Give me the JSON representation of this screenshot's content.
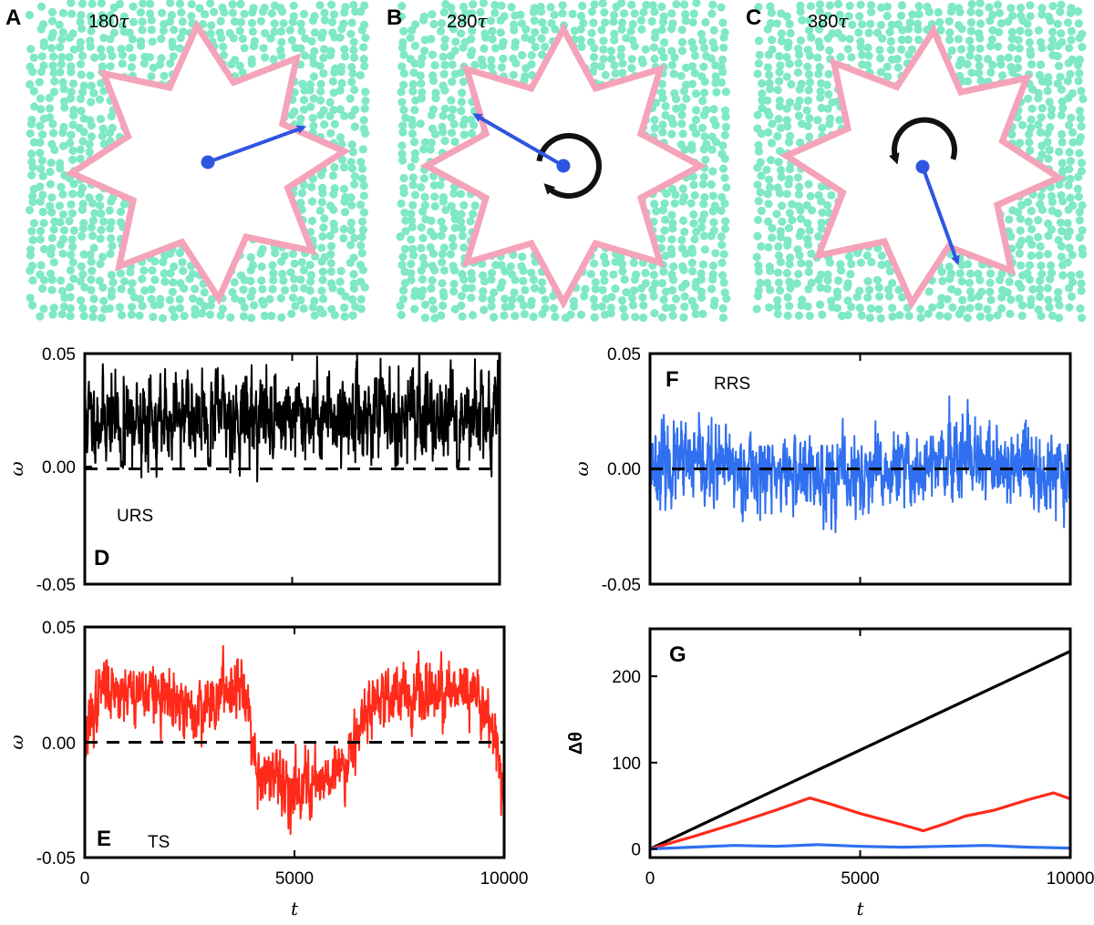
{
  "snapshots": [
    {
      "letter": "A",
      "time": "180",
      "time_unit": "τ",
      "arrow_angle_deg": -20,
      "rotation": "none"
    },
    {
      "letter": "B",
      "time": "280",
      "time_unit": "τ",
      "arrow_angle_deg": -150,
      "rotation": "counterclockwise"
    },
    {
      "letter": "C",
      "time": "380",
      "time_unit": "τ",
      "arrow_angle_deg": 70,
      "rotation": "clockwise"
    }
  ],
  "colors": {
    "particle": "#7fe8c6",
    "star_outline": "#f4a3b8",
    "arrow": "#2f55e0",
    "rotation_arc": "#111111",
    "URS": "#000000",
    "RRS": "#2f6ff0",
    "TS": "#ff2a1a"
  },
  "chart_data": [
    {
      "panel": "D",
      "type": "line",
      "label": "URS",
      "xlabel": "",
      "ylabel": "ω",
      "xlim": [
        0,
        10000
      ],
      "ylim": [
        -0.05,
        0.05
      ],
      "yticks": [
        "0.05",
        "0.00",
        "-0.05"
      ],
      "xticks": [],
      "reference_line": 0,
      "series": [
        {
          "color": "#000000",
          "mean": 0.024,
          "sd": 0.0085,
          "seed": 11,
          "knots": [
            [
              0,
              0.022
            ],
            [
              10000,
              0.024
            ]
          ],
          "dips": [
            [
              900,
              0.0
            ],
            [
              3000,
              0.001
            ],
            [
              9000,
              0.0
            ]
          ]
        }
      ]
    },
    {
      "panel": "F",
      "type": "line",
      "label": "RRS",
      "xlabel": "",
      "ylabel": "ω",
      "xlim": [
        0,
        10000
      ],
      "ylim": [
        -0.05,
        0.05
      ],
      "yticks": [
        "0.05",
        "0.00",
        "-0.05"
      ],
      "xticks": [],
      "reference_line": 0,
      "series": [
        {
          "color": "#2f6ff0",
          "mean": 0.0,
          "sd": 0.0078,
          "seed": 23,
          "knots": [
            [
              0,
              0.002
            ],
            [
              2000,
              0.0
            ],
            [
              5000,
              -0.004
            ],
            [
              7000,
              0.002
            ],
            [
              10000,
              0.0
            ]
          ],
          "dips": []
        }
      ]
    },
    {
      "panel": "E",
      "type": "line",
      "label": "TS",
      "xlabel": "t",
      "ylabel": "ω",
      "xlim": [
        0,
        10000
      ],
      "ylim": [
        -0.05,
        0.05
      ],
      "yticks": [
        "0.05",
        "0.00",
        "-0.05"
      ],
      "xticks": [
        "0",
        "5000",
        "10000"
      ],
      "reference_line": 0,
      "series": [
        {
          "color": "#ff2a1a",
          "mean": 0.0,
          "sd": 0.006,
          "seed": 37,
          "knots": [
            [
              0,
              0.001
            ],
            [
              400,
              0.024
            ],
            [
              1500,
              0.022
            ],
            [
              2600,
              0.012
            ],
            [
              3300,
              0.022
            ],
            [
              3800,
              0.028
            ],
            [
              4100,
              -0.012
            ],
            [
              4800,
              -0.02
            ],
            [
              5600,
              -0.016
            ],
            [
              6200,
              -0.01
            ],
            [
              6500,
              0.008
            ],
            [
              7200,
              0.022
            ],
            [
              8200,
              0.02
            ],
            [
              9200,
              0.022
            ],
            [
              9700,
              0.012
            ],
            [
              10000,
              -0.024
            ]
          ],
          "dips": []
        }
      ]
    },
    {
      "panel": "G",
      "type": "line",
      "xlabel": "t",
      "ylabel": "Δθ",
      "xlim": [
        0,
        10000
      ],
      "ylim": [
        -10,
        255
      ],
      "yticks": [
        "200",
        "100",
        "0"
      ],
      "ytick_values": [
        200,
        100,
        0
      ],
      "xticks": [
        "0",
        "5000",
        "10000"
      ],
      "series": [
        {
          "name": "",
          "color": "#000000",
          "points": [
            [
              0,
              0
            ],
            [
              10000,
              229
            ]
          ]
        },
        {
          "name": "",
          "color": "#ff2a1a",
          "points": [
            [
              0,
              0
            ],
            [
              1000,
              14
            ],
            [
              2000,
              29
            ],
            [
              3000,
              45
            ],
            [
              3800,
              59
            ],
            [
              4300,
              52
            ],
            [
              5000,
              41
            ],
            [
              6000,
              28
            ],
            [
              6500,
              21
            ],
            [
              7000,
              29
            ],
            [
              7500,
              38
            ],
            [
              8200,
              45
            ],
            [
              9000,
              57
            ],
            [
              9600,
              65
            ],
            [
              10000,
              58
            ]
          ]
        },
        {
          "name": "",
          "color": "#2f6ff0",
          "points": [
            [
              0,
              0
            ],
            [
              1000,
              2
            ],
            [
              2000,
              4
            ],
            [
              3000,
              3
            ],
            [
              4000,
              5
            ],
            [
              5000,
              3
            ],
            [
              6000,
              2
            ],
            [
              7000,
              3
            ],
            [
              8000,
              4
            ],
            [
              9000,
              2
            ],
            [
              10000,
              1
            ]
          ]
        }
      ]
    }
  ]
}
